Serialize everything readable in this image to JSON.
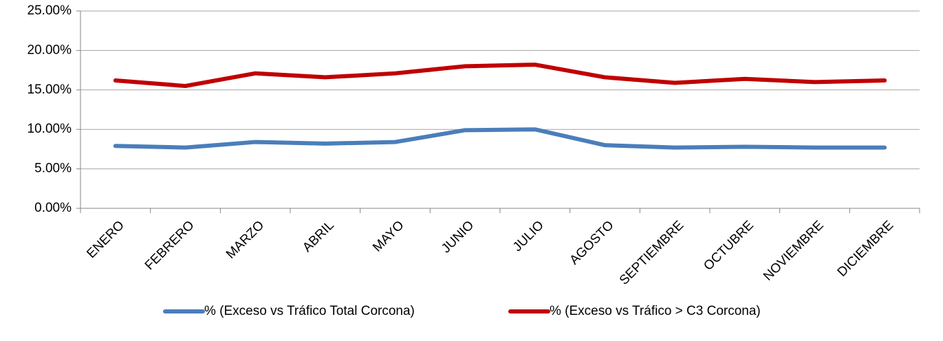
{
  "chart_data": {
    "type": "line",
    "categories": [
      "ENERO",
      "FEBRERO",
      "MARZO",
      "ABRIL",
      "MAYO",
      "JUNIO",
      "JULIO",
      "AGOSTO",
      "SEPTIEMBRE",
      "OCTUBRE",
      "NOVIEMBRE",
      "DICIEMBRE"
    ],
    "series": [
      {
        "name": "% (Exceso vs Tráfico Total Corcona)",
        "color": "#4a7ebb",
        "values": [
          7.9,
          7.7,
          8.4,
          8.2,
          8.4,
          9.9,
          10.0,
          8.0,
          7.7,
          7.8,
          7.7,
          7.7
        ]
      },
      {
        "name": "% (Exceso vs Tráfico > C3 Corcona)",
        "color": "#c00000",
        "values": [
          16.2,
          15.5,
          17.1,
          16.6,
          17.1,
          18.0,
          18.2,
          16.6,
          15.9,
          16.4,
          16.0,
          16.2
        ]
      }
    ],
    "ylim": [
      0,
      25
    ],
    "yticks": [
      {
        "value": 0,
        "label": "0.00%"
      },
      {
        "value": 5,
        "label": "5.00%"
      },
      {
        "value": 10,
        "label": "10.00%"
      },
      {
        "value": 15,
        "label": "15.00%"
      },
      {
        "value": 20,
        "label": "20.00%"
      },
      {
        "value": 25,
        "label": "25.00%"
      }
    ],
    "grid": true,
    "legend": "bottom"
  }
}
